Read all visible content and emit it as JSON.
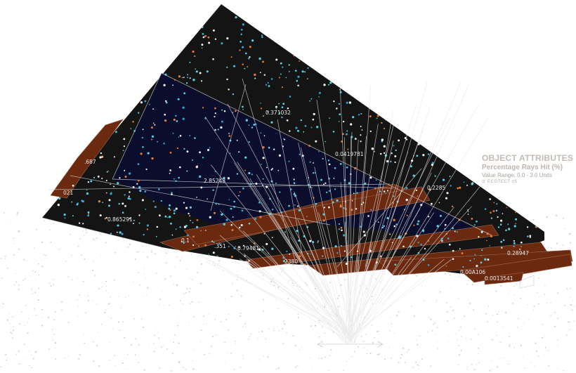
{
  "legend": {
    "title": "OBJECT ATTRIBUTES",
    "subtitle": "Percentage Rays Hit (%)",
    "range": "Value Range: 0.0 - 3.0 Units",
    "brand": "ECOTECT v5"
  },
  "values": [
    {
      "id": "v1",
      "text": "0.371032"
    },
    {
      "id": "v2",
      "text": "0.0419781"
    },
    {
      "id": "v3",
      "text": "2.85248"
    },
    {
      "id": "v4",
      "text": "0.865291"
    },
    {
      "id": "v5",
      "text": ".687"
    },
    {
      "id": "v6",
      "text": "021"
    },
    {
      "id": "v7",
      "text": "0.1"
    },
    {
      "id": "v8",
      "text": ".351"
    },
    {
      "id": "v9",
      "text": "0.79481"
    },
    {
      "id": "v10",
      "text": "0.2285"
    },
    {
      "id": "v11",
      "text": "0.28947"
    },
    {
      "id": "v12",
      "text": "0.0013541"
    },
    {
      "id": "v13",
      "text": "0.00A106"
    },
    {
      "id": "v14",
      "text": "2380"
    }
  ],
  "colors": {
    "roof_dark": "#141414",
    "roof_navy": "#0a0d2c",
    "brown": "#6b2a10",
    "ray": "#e6e6e6",
    "hit_cyan": "#55cfe0",
    "hit_orange": "#e07a3a",
    "hit_white": "#f2f2f2"
  }
}
